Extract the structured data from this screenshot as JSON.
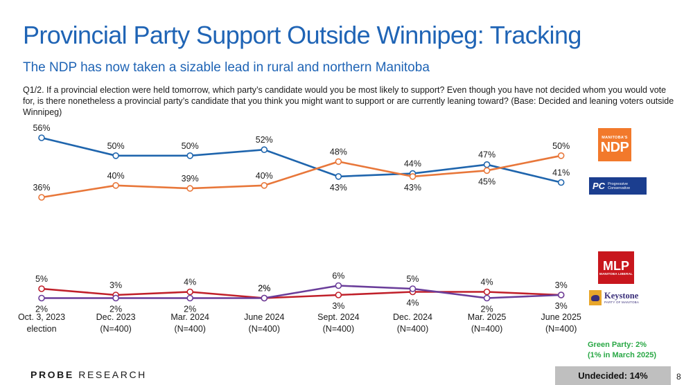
{
  "header": {
    "title": "Provincial Party Support Outside Winnipeg: Tracking",
    "subtitle": "The NDP has now taken a sizable lead in rural and northern Manitoba",
    "question": "Q1/2. If a provincial election were held tomorrow, which party’s candidate would you be most likely to support? Even though you have not decided whom you would vote for, is there nonetheless a provincial party’s candidate that you think you might want to support or are currently leaning toward? (Base: Decided and leaning voters outside Winnipeg)"
  },
  "chart_data": {
    "type": "line",
    "categories": [
      [
        "Oct. 3, 2023",
        "election"
      ],
      [
        "Dec. 2023",
        "(N=400)"
      ],
      [
        "Mar. 2024",
        "(N=400)"
      ],
      [
        "June 2024",
        "(N=400)"
      ],
      [
        "Sept. 2024",
        "(N=400)"
      ],
      [
        "Dec. 2024",
        "(N=400)"
      ],
      [
        "Mar. 2025",
        "(N=400)"
      ],
      [
        "June 2025",
        "(N=400)"
      ]
    ],
    "series": [
      {
        "party": "PC",
        "color": "#1f65ad",
        "values": [
          56,
          50,
          50,
          52,
          43,
          44,
          47,
          41
        ],
        "label_pos": [
          "above",
          "above",
          "above",
          "above",
          "below",
          "above",
          "above",
          "above"
        ]
      },
      {
        "party": "NDP",
        "color": "#e8773a",
        "values": [
          36,
          40,
          39,
          40,
          48,
          43,
          45,
          50
        ],
        "label_pos": [
          "above",
          "above",
          "above",
          "above",
          "above",
          "below",
          "below",
          "above"
        ]
      },
      {
        "party": "Liberal",
        "color": "#c0202a",
        "values": [
          5,
          3,
          4,
          2,
          3,
          4,
          4,
          3
        ],
        "label_pos": [
          "above",
          "above",
          "above",
          "above",
          "below",
          "below",
          "above",
          "above"
        ]
      },
      {
        "party": "Keystone",
        "color": "#6a3d9a",
        "values": [
          2,
          2,
          2,
          2,
          6,
          5,
          2,
          3
        ],
        "label_pos": [
          "below",
          "below",
          "below",
          "above",
          "above",
          "above",
          "below",
          "below"
        ]
      }
    ],
    "value_suffix": "%"
  },
  "logos": {
    "ndp": {
      "small": "MANITOBA'S",
      "big": "NDP",
      "color": "#f2792b"
    },
    "pc": {
      "big": "PC",
      "small1": "Progressive",
      "small2": "Conservative",
      "color": "#1b3e8f"
    },
    "mlp": {
      "big": "MLP",
      "small": "MANITOBA LIBERAL",
      "color": "#c8161d"
    },
    "keystone": {
      "name": "Keystone",
      "sub": "PARTY OF MANITOBA",
      "color": "#3a2f7a"
    }
  },
  "notes": {
    "green_line1": "Green Party: 2%",
    "green_line2": "(1% in March 2025)",
    "undecided": "Undecided: 14%"
  },
  "footer": {
    "brand_bold": "PROBE",
    "brand_rest": " RESEARCH",
    "page_number": "8"
  }
}
